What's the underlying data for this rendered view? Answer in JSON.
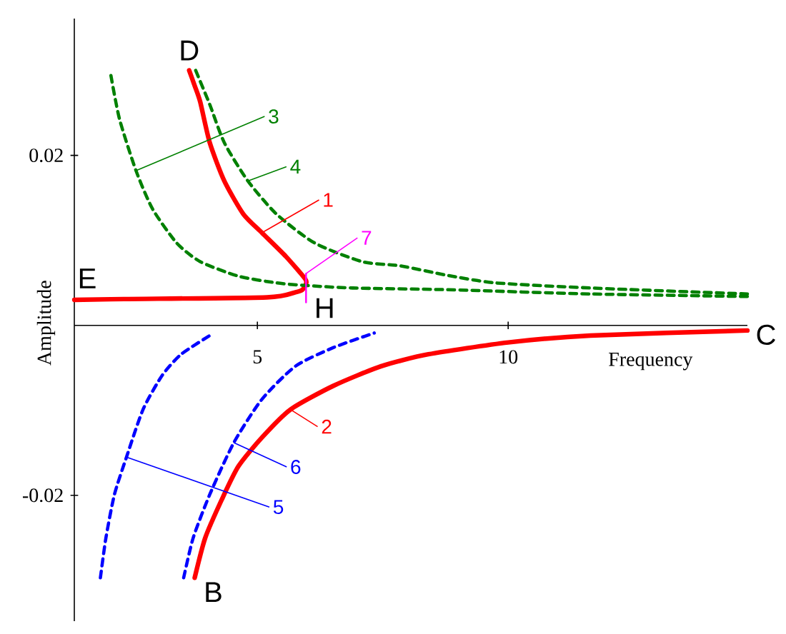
{
  "chart_data": {
    "type": "line",
    "xlabel": "Frequency",
    "ylabel": "Amplitude",
    "xlim": [
      1.35,
      14.77
    ],
    "ylim": [
      -0.0348,
      0.0361
    ],
    "xticks": [
      5,
      10
    ],
    "yticks": [
      -0.02,
      0.02
    ],
    "annotations": [
      {
        "text": "1",
        "x": 5.09,
        "y": 0.0109
      },
      {
        "text": "2",
        "x": 5.66,
        "y": -0.0099
      },
      {
        "text": "3",
        "x": 2.58,
        "y": 0.0182
      },
      {
        "text": "4",
        "x": 4.81,
        "y": 0.017
      },
      {
        "text": "5",
        "x": 2.39,
        "y": -0.0155
      },
      {
        "text": "6",
        "x": 4.53,
        "y": -0.0138
      },
      {
        "text": "7",
        "x": 5.97,
        "y": 0.0061
      },
      {
        "text": "D",
        "x": 3.64,
        "y": 0.03
      },
      {
        "text": "E",
        "x": 1.35,
        "y": 0.003
      },
      {
        "text": "H",
        "x": 5.97,
        "y": 0.0049
      },
      {
        "text": "B",
        "x": 3.75,
        "y": -0.0297
      },
      {
        "text": "C",
        "x": 14.77,
        "y": -0.0006
      }
    ],
    "series": [
      {
        "color": "#ff0000",
        "line_style": "solid",
        "x": [
          3.64,
          3.75,
          3.86,
          4.05,
          4.34,
          4.72,
          5.09,
          5.57,
          5.95,
          5.97,
          5.9,
          5.76,
          5.19,
          2.34,
          1.35
        ],
        "values": [
          0.03,
          0.0282,
          0.0263,
          0.0215,
          0.017,
          0.0131,
          0.0109,
          0.0081,
          0.0055,
          0.0049,
          0.0042,
          0.0039,
          0.0033,
          0.0031,
          0.003
        ]
      },
      {
        "color": "#ff0000",
        "line_style": "solid",
        "x": [
          3.75,
          3.96,
          4.29,
          4.62,
          5.09,
          5.66,
          6.52,
          7.47,
          8.41,
          10,
          11.64,
          14.77
        ],
        "values": [
          -0.0297,
          -0.025,
          -0.0205,
          -0.0166,
          -0.0132,
          -0.0099,
          -0.0071,
          -0.0048,
          -0.0034,
          -0.002,
          -0.0012,
          -0.0006
        ]
      },
      {
        "color": "#008000",
        "line_style": "dashed",
        "x": [
          2.08,
          2.25,
          2.58,
          2.91,
          3.39,
          3.86,
          4.62,
          5.38,
          5.95,
          6.9,
          8.78,
          11.64,
          14.77
        ],
        "values": [
          0.0294,
          0.0243,
          0.0182,
          0.0137,
          0.0097,
          0.0075,
          0.0058,
          0.005,
          0.0047,
          0.0044,
          0.0042,
          0.0037,
          0.0034
        ]
      },
      {
        "color": "#008000",
        "line_style": "dashed",
        "x": [
          3.77,
          4.05,
          4.34,
          4.81,
          5.38,
          6.14,
          7.09,
          7.85,
          8.78,
          9.75,
          11.64,
          14.77
        ],
        "values": [
          0.03,
          0.026,
          0.0215,
          0.017,
          0.0131,
          0.0097,
          0.0075,
          0.007,
          0.0059,
          0.005,
          0.0044,
          0.0037
        ]
      },
      {
        "color": "#0000ff",
        "line_style": "dashed",
        "x": [
          1.87,
          1.98,
          2.15,
          2.39,
          2.72,
          3.1,
          3.48,
          4.05
        ],
        "values": [
          -0.0297,
          -0.025,
          -0.0199,
          -0.0155,
          -0.0099,
          -0.0059,
          -0.0034,
          -0.0012
        ]
      },
      {
        "color": "#0000ff",
        "line_style": "dashed",
        "x": [
          3.53,
          3.72,
          4.05,
          4.53,
          5.09,
          5.76,
          6.52,
          7.33
        ],
        "values": [
          -0.0297,
          -0.025,
          -0.0199,
          -0.0138,
          -0.0087,
          -0.0048,
          -0.0026,
          -0.0009
        ]
      },
      {
        "color": "#ff00ff",
        "line_style": "solid",
        "x": [
          5.97,
          5.97
        ],
        "values": [
          0.0061,
          0.0027
        ]
      }
    ]
  }
}
